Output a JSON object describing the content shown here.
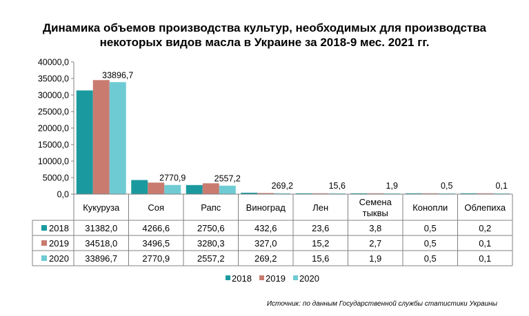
{
  "chart_data": {
    "type": "bar",
    "title_line1": "Динамика объемов производства культур, необходимых для производства",
    "title_line2": "некоторых видов масла в Украине за 2018-9 мес. 2021 гг.",
    "categories": [
      "Кукуруза",
      "Соя",
      "Рапс",
      "Виноград",
      "Лен",
      "Семена тыквы",
      "Конопли",
      "Облепиха"
    ],
    "category_lines": [
      [
        "Кукуруза"
      ],
      [
        "Соя"
      ],
      [
        "Рапс"
      ],
      [
        "Виноград"
      ],
      [
        "Лен"
      ],
      [
        "Семена",
        "тыквы"
      ],
      [
        "Конопли"
      ],
      [
        "Облепиха"
      ]
    ],
    "series": [
      {
        "name": "2018",
        "color": "#1A9A9F",
        "values": [
          31382.0,
          4266.6,
          2750.6,
          432.6,
          23.6,
          3.8,
          0.5,
          0.2
        ],
        "labels": [
          "31382,0",
          "4266,6",
          "2750,6",
          "432,6",
          "23,6",
          "3,8",
          "0,5",
          "0,2"
        ]
      },
      {
        "name": "2019",
        "color": "#C97B70",
        "values": [
          34518.0,
          3496.5,
          3280.3,
          327.0,
          15.2,
          2.7,
          0.5,
          0.1
        ],
        "labels": [
          "34518,0",
          "3496,5",
          "3280,3",
          "327,0",
          "15,2",
          "2,7",
          "0,5",
          "0,1"
        ]
      },
      {
        "name": "2020",
        "color": "#6ECBD3",
        "values": [
          33896.7,
          2770.9,
          2557.2,
          269.2,
          15.6,
          1.9,
          0.5,
          0.1
        ],
        "labels": [
          "33896,7",
          "2770,9",
          "2557,2",
          "269,2",
          "15,6",
          "1,9",
          "0,5",
          "0,1"
        ]
      }
    ],
    "data_labels_series": "2020",
    "yticks": [
      "0,0",
      "5000,0",
      "10000,0",
      "15000,0",
      "20000,0",
      "25000,0",
      "30000,0",
      "35000,0",
      "40000,0"
    ],
    "ylim": [
      0,
      40000
    ],
    "grid": false,
    "legend_position": "bottom",
    "data_table": true
  },
  "source_note": "Источник: по данным Государственной службы статистики Украины"
}
